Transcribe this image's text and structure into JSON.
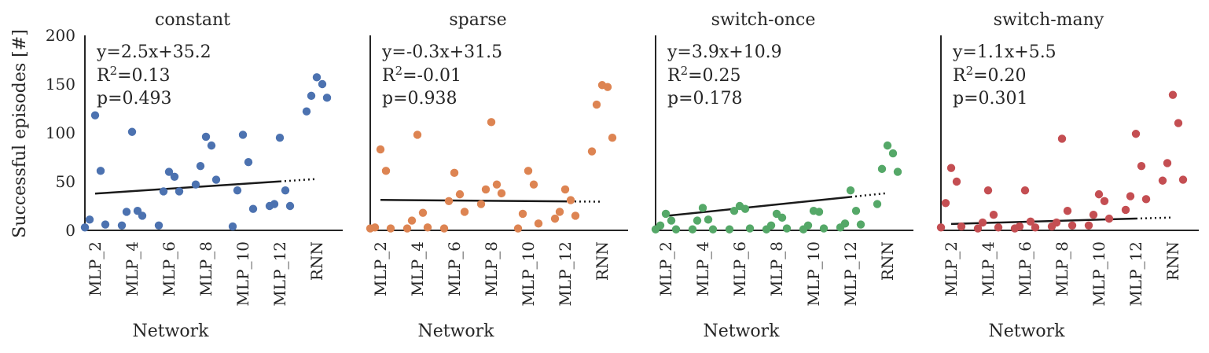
{
  "chart_data": {
    "type": "scatter",
    "ylabel": "Successful episodes [#]",
    "xlabel": "Network",
    "categories": [
      "MLP_2",
      "MLP_4",
      "MLP_6",
      "MLP_8",
      "MLP_10",
      "MLP_12",
      "RNN"
    ],
    "ylim": [
      0,
      200
    ],
    "yticks": [
      0,
      50,
      100,
      150,
      200
    ],
    "grid": false,
    "panels": [
      {
        "title": "constant",
        "color": "#4c72b0",
        "stats": {
          "equation": "y=2.5x+35.2",
          "r2_label": "R",
          "r2_value": "=0.13",
          "p": "p=0.493"
        },
        "fit": {
          "slope": 2.5,
          "intercept": 35.2
        },
        "points": [
          {
            "x": "MLP_2",
            "y": [
              118,
              61,
              11,
              6,
              3
            ]
          },
          {
            "x": "MLP_4",
            "y": [
              101,
              20,
              19,
              15,
              5
            ]
          },
          {
            "x": "MLP_6",
            "y": [
              60,
              55,
              40,
              40,
              5
            ]
          },
          {
            "x": "MLP_8",
            "y": [
              96,
              87,
              66,
              52,
              47
            ]
          },
          {
            "x": "MLP_10",
            "y": [
              98,
              70,
              41,
              22,
              4
            ]
          },
          {
            "x": "MLP_12",
            "y": [
              95,
              41,
              27,
              25,
              25
            ]
          },
          {
            "x": "RNN",
            "y": [
              157,
              150,
              138,
              136,
              122
            ]
          }
        ]
      },
      {
        "title": "sparse",
        "color": "#dd8452",
        "stats": {
          "equation": "y=-0.3x+31.5",
          "r2_label": "R",
          "r2_value": "=-0.01",
          "p": "p=0.938"
        },
        "fit": {
          "slope": -0.3,
          "intercept": 31.5
        },
        "points": [
          {
            "x": "MLP_2",
            "y": [
              83,
              61,
              3,
              2,
              2
            ]
          },
          {
            "x": "MLP_4",
            "y": [
              98,
              18,
              10,
              3,
              2
            ]
          },
          {
            "x": "MLP_6",
            "y": [
              59,
              37,
              30,
              19,
              2
            ]
          },
          {
            "x": "MLP_8",
            "y": [
              111,
              47,
              42,
              38,
              27
            ]
          },
          {
            "x": "MLP_10",
            "y": [
              61,
              47,
              17,
              7,
              2
            ]
          },
          {
            "x": "MLP_12",
            "y": [
              42,
              31,
              19,
              15,
              12
            ]
          },
          {
            "x": "RNN",
            "y": [
              149,
              147,
              129,
              95,
              81
            ]
          }
        ]
      },
      {
        "title": "switch-once",
        "color": "#55a868",
        "stats": {
          "equation": "y=3.9x+10.9",
          "r2_label": "R",
          "r2_value": "=0.25",
          "p": "p=0.178"
        },
        "fit": {
          "slope": 3.9,
          "intercept": 10.9
        },
        "points": [
          {
            "x": "MLP_2",
            "y": [
              17,
              10,
              5,
              1,
              1
            ]
          },
          {
            "x": "MLP_4",
            "y": [
              23,
              11,
              10,
              1,
              1
            ]
          },
          {
            "x": "MLP_6",
            "y": [
              25,
              22,
              20,
              2,
              1
            ]
          },
          {
            "x": "MLP_8",
            "y": [
              17,
              13,
              5,
              2,
              1
            ]
          },
          {
            "x": "MLP_10",
            "y": [
              20,
              19,
              5,
              2,
              1
            ]
          },
          {
            "x": "MLP_12",
            "y": [
              41,
              20,
              7,
              6,
              3
            ]
          },
          {
            "x": "RNN",
            "y": [
              87,
              79,
              63,
              60,
              27
            ]
          }
        ]
      },
      {
        "title": "switch-many",
        "color": "#c44e52",
        "stats": {
          "equation": "y=1.1x+5.5",
          "r2_label": "R",
          "r2_value": "=0.20",
          "p": "p=0.301"
        },
        "fit": {
          "slope": 1.1,
          "intercept": 5.5
        },
        "points": [
          {
            "x": "MLP_2",
            "y": [
              64,
              50,
              28,
              4,
              3
            ]
          },
          {
            "x": "MLP_4",
            "y": [
              41,
              16,
              8,
              3,
              2
            ]
          },
          {
            "x": "MLP_6",
            "y": [
              41,
              9,
              4,
              3,
              2
            ]
          },
          {
            "x": "MLP_8",
            "y": [
              94,
              20,
              8,
              5,
              4
            ]
          },
          {
            "x": "MLP_10",
            "y": [
              37,
              30,
              16,
              12,
              5
            ]
          },
          {
            "x": "MLP_12",
            "y": [
              99,
              66,
              35,
              32,
              21
            ]
          },
          {
            "x": "RNN",
            "y": [
              139,
              110,
              69,
              52,
              51
            ]
          }
        ]
      }
    ]
  }
}
